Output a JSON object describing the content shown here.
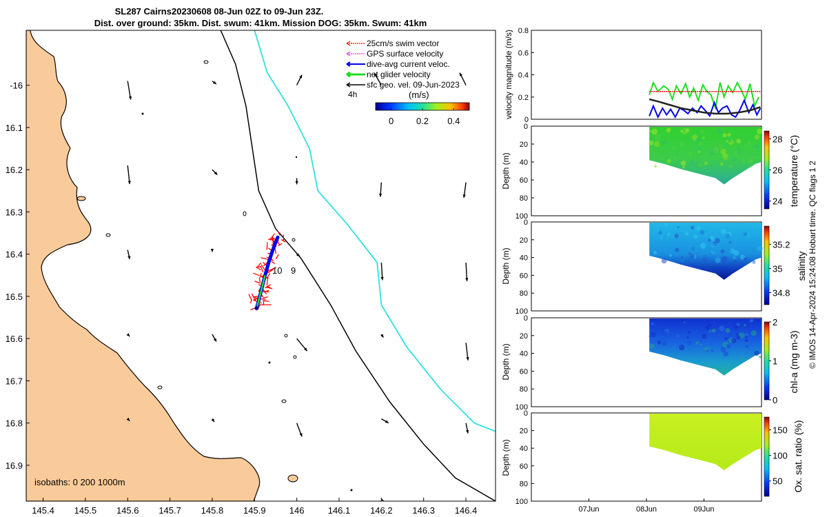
{
  "colors": {
    "land": "#FACB9A",
    "isobath_200": "#000000",
    "isobath_1000": "#30E0E0",
    "swim_vector": "#FF0000",
    "gps_surface": "#FF22FF",
    "dive_avg_current": "#0000EE",
    "net_glider": "#22DD22",
    "sfc_geo": "#000000"
  },
  "titles": {
    "line1": "SL287 Cairns20230608 08-Jun 02Z to 09-Jun 23Z.",
    "line2": "Dist. over ground: 35km. Dist. swum: 41km. Mission DOG: 35km. Swum: 41km"
  },
  "map": {
    "legend": [
      {
        "key": "swim_vector",
        "label": "25cm/s swim vector"
      },
      {
        "key": "gps_surface",
        "label": "GPS surface velocity"
      },
      {
        "key": "dive_avg_current",
        "label": "dive-avg current veloc."
      },
      {
        "key": "net_glider",
        "label": "net glider velocity"
      },
      {
        "key": "sfc_geo",
        "label": "sfc geo. vel. 09-Jun-2023"
      }
    ],
    "tag_4h": "4h",
    "units": "(m/s)",
    "isobaths_note": "isobaths: 0   200  1000m",
    "track_markers": [
      "9",
      "10"
    ]
  },
  "colorbars": {
    "speed": {
      "ticks": [
        "0",
        "0.2",
        "0.4"
      ]
    },
    "temperature": {
      "label": "temperature (°C)",
      "ticks": [
        "24",
        "26",
        "28"
      ]
    },
    "salinity": {
      "label": "salinity",
      "ticks": [
        "34.8",
        "35",
        "35.2"
      ]
    },
    "chla": {
      "label": "chl-a (mg m-3)",
      "ticks": [
        "0",
        "1",
        "2"
      ]
    },
    "oxygen": {
      "label": "Ox. sat. ratio (%)",
      "ticks": [
        "50",
        "100",
        "150"
      ]
    }
  },
  "right_panels": {
    "velocity_ylabel": "velocity magnitude (m/s)",
    "depth_ylabel": "Depth (m)",
    "copyright": "© IMOS 14-Apr-2024 15:24:08 Hobart time. QC flags 1  2"
  },
  "chart_data": [
    {
      "type": "map",
      "title": "SL287 Cairns20230608 08-Jun 02Z to 09-Jun 23Z.",
      "xlim": [
        145.36,
        146.47
      ],
      "ylim": [
        -16.985,
        -15.87
      ],
      "x_ticks": [
        145.4,
        145.5,
        145.6,
        145.7,
        145.8,
        145.9,
        146,
        146.1,
        146.2,
        146.3,
        146.4
      ],
      "x_tick_labels": [
        "145.4",
        "145.5",
        "145.6",
        "145.7",
        "145.8",
        "145.9",
        "146",
        "146.1",
        "146.2",
        "146.3",
        "146.4"
      ],
      "y_ticks": [
        -16,
        -16.1,
        -16.2,
        -16.3,
        -16.4,
        -16.5,
        -16.6,
        -16.7,
        -16.8,
        -16.9
      ],
      "y_tick_labels": [
        "-16",
        "16.1",
        "16.2",
        "16.3",
        "16.4",
        "16.5",
        "16.6",
        "16.7",
        "16.8",
        "16.9"
      ],
      "glider_track": [
        {
          "lon": 145.905,
          "lat": -16.528
        },
        {
          "lon": 145.915,
          "lat": -16.49
        },
        {
          "lon": 145.925,
          "lat": -16.45
        },
        {
          "lon": 145.935,
          "lat": -16.415
        },
        {
          "lon": 145.945,
          "lat": -16.385
        },
        {
          "lon": 145.955,
          "lat": -16.36
        }
      ],
      "track_labels": [
        {
          "text": "9",
          "lon": 145.955,
          "lat": -16.44
        },
        {
          "text": "10",
          "lon": 145.955,
          "lat": -16.48
        }
      ],
      "isobath_200_lon_lat": [
        [
          145.82,
          -15.87
        ],
        [
          145.855,
          -15.95
        ],
        [
          145.88,
          -16.05
        ],
        [
          145.895,
          -16.15
        ],
        [
          145.91,
          -16.25
        ],
        [
          145.95,
          -16.34
        ],
        [
          146.01,
          -16.41
        ],
        [
          146.08,
          -16.52
        ],
        [
          146.14,
          -16.63
        ],
        [
          146.22,
          -16.75
        ],
        [
          146.3,
          -16.85
        ],
        [
          146.375,
          -16.93
        ],
        [
          146.47,
          -16.985
        ]
      ],
      "isobath_1000_lon_lat": [
        [
          145.9,
          -15.87
        ],
        [
          145.93,
          -15.97
        ],
        [
          145.98,
          -16.05
        ],
        [
          146.03,
          -16.15
        ],
        [
          146.05,
          -16.25
        ],
        [
          146.12,
          -16.33
        ],
        [
          146.19,
          -16.42
        ],
        [
          146.2,
          -16.52
        ],
        [
          146.26,
          -16.62
        ],
        [
          146.34,
          -16.72
        ],
        [
          146.42,
          -16.8
        ],
        [
          146.47,
          -16.82
        ]
      ],
      "sfc_geo_vectors": [
        {
          "lon": 145.6,
          "lat": -15.99,
          "u": 0.03,
          "v": -0.18
        },
        {
          "lon": 145.8,
          "lat": -15.99,
          "u": 0.04,
          "v": -0.03
        },
        {
          "lon": 146.0,
          "lat": -16.0,
          "u": 0.05,
          "v": 0.1
        },
        {
          "lon": 146.2,
          "lat": -16.0,
          "u": -0.07,
          "v": 0.12
        },
        {
          "lon": 146.4,
          "lat": -16.0,
          "u": -0.06,
          "v": 0.12
        },
        {
          "lon": 145.6,
          "lat": -16.19,
          "u": 0.02,
          "v": -0.18
        },
        {
          "lon": 145.8,
          "lat": -16.2,
          "u": 0.05,
          "v": -0.05
        },
        {
          "lon": 146.0,
          "lat": -16.22,
          "u": 0.0,
          "v": -0.06
        },
        {
          "lon": 146.2,
          "lat": -16.23,
          "u": -0.01,
          "v": -0.14
        },
        {
          "lon": 146.4,
          "lat": -16.23,
          "u": -0.02,
          "v": -0.15
        },
        {
          "lon": 145.6,
          "lat": -16.39,
          "u": 0.02,
          "v": -0.09
        },
        {
          "lon": 145.8,
          "lat": -16.39,
          "u": 0.0,
          "v": -0.02
        },
        {
          "lon": 146.0,
          "lat": -16.4,
          "u": 0.03,
          "v": -0.02
        },
        {
          "lon": 146.2,
          "lat": -16.42,
          "u": 0.01,
          "v": -0.17
        },
        {
          "lon": 146.4,
          "lat": -16.42,
          "u": 0.01,
          "v": -0.18
        },
        {
          "lon": 145.6,
          "lat": -16.59,
          "u": 0.02,
          "v": -0.02
        },
        {
          "lon": 145.8,
          "lat": -16.59,
          "u": 0.04,
          "v": -0.07
        },
        {
          "lon": 146.0,
          "lat": -16.6,
          "u": 0.1,
          "v": -0.12
        },
        {
          "lon": 146.2,
          "lat": -16.59,
          "u": 0.02,
          "v": -0.03
        },
        {
          "lon": 146.4,
          "lat": -16.61,
          "u": 0.02,
          "v": -0.17
        },
        {
          "lon": 145.6,
          "lat": -16.79,
          "u": 0.02,
          "v": -0.02
        },
        {
          "lon": 145.8,
          "lat": -16.79,
          "u": 0.02,
          "v": -0.03
        },
        {
          "lon": 146.0,
          "lat": -16.8,
          "u": 0.05,
          "v": -0.13
        },
        {
          "lon": 146.2,
          "lat": -16.79,
          "u": 0.07,
          "v": -0.04
        },
        {
          "lon": 146.4,
          "lat": -16.8,
          "u": 0.02,
          "v": -0.1
        },
        {
          "lon": 146.2,
          "lat": -16.98,
          "u": 0.05,
          "v": -0.05
        }
      ],
      "speed_colorbar": {
        "label": "(m/s)",
        "range": [
          -0.1,
          0.5
        ],
        "ticks": [
          0,
          0.2,
          0.4
        ]
      }
    },
    {
      "type": "line",
      "title": "velocity magnitude",
      "ylabel": "velocity magnitude (m/s)",
      "xlabel": "",
      "x_ticks": [
        "07Jun",
        "08Jun",
        "09Jun"
      ],
      "ylim": [
        0,
        0.8
      ],
      "y_ticks": [
        0,
        0.2,
        0.4,
        0.6,
        0.8
      ],
      "xlim_days": [
        6.0,
        10.0
      ],
      "series": [
        {
          "name": "net glider velocity",
          "color": "#22DD22",
          "x": [
            8.05,
            8.12,
            8.2,
            8.3,
            8.38,
            8.45,
            8.52,
            8.6,
            8.68,
            8.75,
            8.82,
            8.9,
            8.98,
            9.05,
            9.12,
            9.2,
            9.28,
            9.35,
            9.42,
            9.5,
            9.58,
            9.65,
            9.72,
            9.8,
            9.88,
            9.95
          ],
          "y": [
            0.22,
            0.33,
            0.25,
            0.3,
            0.27,
            0.18,
            0.3,
            0.23,
            0.32,
            0.2,
            0.28,
            0.17,
            0.31,
            0.25,
            0.22,
            0.1,
            0.33,
            0.2,
            0.3,
            0.24,
            0.33,
            0.26,
            0.18,
            0.32,
            0.12,
            0.2
          ]
        },
        {
          "name": "25cm/s swim vector",
          "color": "#FF0000",
          "x": [
            8.05,
            9.98
          ],
          "y": [
            0.25,
            0.25
          ]
        },
        {
          "name": "dive-avg current veloc.",
          "color": "#0000EE",
          "x": [
            8.05,
            8.12,
            8.2,
            8.28,
            8.35,
            8.42,
            8.5,
            8.58,
            8.65,
            8.72,
            8.8,
            8.88,
            8.95,
            9.02,
            9.1,
            9.18,
            9.25,
            9.32,
            9.4,
            9.48,
            9.55,
            9.62,
            9.7,
            9.78,
            9.85,
            9.92,
            9.98
          ],
          "y": [
            0.03,
            0.12,
            0.02,
            0.1,
            0.04,
            0.09,
            0.02,
            0.1,
            0.08,
            0.05,
            0.1,
            0.06,
            0.12,
            0.08,
            0.03,
            0.15,
            0.06,
            0.1,
            0.12,
            0.04,
            0.02,
            0.08,
            0.17,
            0.06,
            0.13,
            0.04,
            0.1
          ]
        },
        {
          "name": "sfc geo. vel.",
          "color": "#222222",
          "x": [
            8.05,
            8.2,
            8.4,
            8.6,
            8.8,
            9.0,
            9.2,
            9.4,
            9.6,
            9.8,
            9.98
          ],
          "y": [
            0.18,
            0.16,
            0.13,
            0.1,
            0.08,
            0.06,
            0.05,
            0.05,
            0.06,
            0.08,
            0.11
          ]
        }
      ]
    },
    {
      "type": "heatmap",
      "variable": "temperature",
      "units": "°C",
      "ylabel": "Depth (m)",
      "ylim": [
        100,
        0
      ],
      "y_ticks": [
        0,
        20,
        40,
        60,
        80,
        100
      ],
      "x_range_days": [
        8.05,
        10.0
      ],
      "max_depth_profile_days": [
        8.05,
        8.3,
        8.6,
        8.9,
        9.2,
        9.35,
        9.5,
        9.7,
        9.9,
        10.0
      ],
      "max_depth_profile_m": [
        38,
        42,
        48,
        53,
        58,
        65,
        58,
        50,
        42,
        40
      ],
      "clim": [
        23.5,
        28.5
      ],
      "color_ticks": [
        24,
        26,
        28
      ],
      "typical_values": {
        "surface": 27.3,
        "bottom": 25.8
      }
    },
    {
      "type": "heatmap",
      "variable": "salinity",
      "units": "",
      "ylabel": "Depth (m)",
      "ylim": [
        100,
        0
      ],
      "y_ticks": [
        0,
        20,
        40,
        60,
        80,
        100
      ],
      "x_range_days": [
        8.05,
        10.0
      ],
      "clim": [
        34.7,
        35.35
      ],
      "color_ticks": [
        34.8,
        35.0,
        35.2
      ],
      "typical_values": {
        "surface": 35.02,
        "bottom": 34.78
      }
    },
    {
      "type": "heatmap",
      "variable": "chl-a",
      "units": "mg m-3",
      "ylabel": "Depth (m)",
      "ylim": [
        100,
        0
      ],
      "y_ticks": [
        0,
        20,
        40,
        60,
        80,
        100
      ],
      "x_range_days": [
        8.05,
        10.0
      ],
      "clim": [
        0,
        2
      ],
      "color_ticks": [
        0,
        1,
        2
      ],
      "typical_values": {
        "surface": 0.15,
        "bottom": 0.55
      }
    },
    {
      "type": "heatmap",
      "variable": "Ox. sat. ratio",
      "units": "%",
      "ylabel": "Depth (m)",
      "ylim": [
        100,
        0
      ],
      "y_ticks": [
        0,
        20,
        40,
        60,
        80,
        100
      ],
      "x_range_days": [
        8.05,
        10.0
      ],
      "x_ticks": [
        "07Jun",
        "08Jun",
        "09Jun"
      ],
      "clim": [
        20,
        175
      ],
      "color_ticks": [
        50,
        100,
        150
      ],
      "typical_values": {
        "surface": 118,
        "bottom": 115
      }
    }
  ]
}
